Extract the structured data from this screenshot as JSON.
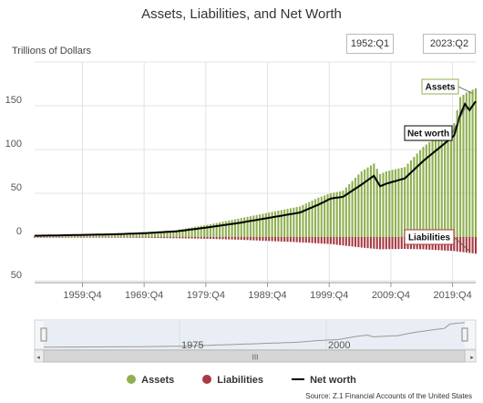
{
  "header": {
    "title": "Assets, Liabilities, and Net Worth",
    "unit_label": "Trillions of Dollars",
    "range_start": "1952:Q1",
    "range_end": "2023:Q2"
  },
  "navigator": {
    "labels": [
      "1975",
      "2000"
    ],
    "scrollbar_grip": "III"
  },
  "legend": {
    "assets": "Assets",
    "liabilities": "Liabilities",
    "net_worth": "Net worth"
  },
  "callouts": {
    "assets": "Assets",
    "net_worth": "Net worth",
    "liabilities": "Liabilities"
  },
  "source": "Source: Z.1 Financial Accounts of the United States",
  "colors": {
    "assets": "#8fb051",
    "liabilities": "#a83a43",
    "net_worth": "#000000",
    "grid": "#e3e3e3",
    "navigator_fill": "#e8eef4",
    "navigator_line": "#999999"
  },
  "chart_data": {
    "type": "bar",
    "title": "Assets, Liabilities, and Net Worth",
    "ylabel": "Trillions of Dollars",
    "ylim": [
      -50,
      175
    ],
    "yticks": [
      -50,
      0,
      50,
      100,
      150
    ],
    "ytick_labels": [
      "50",
      "0",
      "50",
      "100",
      "150"
    ],
    "xlim": [
      1952.0,
      2023.5
    ],
    "xticks": [
      1959.75,
      1969.75,
      1979.75,
      1989.75,
      1999.75,
      2009.75,
      2019.75
    ],
    "xtick_labels": [
      "1959:Q4",
      "1969:Q4",
      "1979:Q4",
      "1989:Q4",
      "1999:Q4",
      "2009:Q4",
      "2019:Q4"
    ],
    "grid": true,
    "legend_position": "bottom-center",
    "series": [
      {
        "name": "Assets",
        "mark": "bar",
        "x": [
          1952,
          1955,
          1960,
          1965,
          1970,
          1975,
          1980,
          1985,
          1990,
          1995,
          1998,
          2000,
          2002,
          2005,
          2007,
          2008,
          2009,
          2012,
          2015,
          2019,
          2020,
          2021,
          2022,
          2023.5
        ],
        "y": [
          1.8,
          2.2,
          3,
          4,
          5.5,
          8,
          14,
          21,
          28,
          35,
          45,
          50,
          53,
          75,
          84,
          72,
          75,
          80,
          103,
          125,
          130,
          160,
          165,
          170
        ]
      },
      {
        "name": "Liabilities",
        "mark": "bar",
        "x": [
          1952,
          1960,
          1970,
          1980,
          1985,
          1990,
          1995,
          2000,
          2005,
          2008,
          2012,
          2015,
          2020,
          2023.5
        ],
        "y": [
          -0.3,
          -0.5,
          -0.8,
          -2,
          -3,
          -4.5,
          -6,
          -8,
          -12,
          -14,
          -13.5,
          -14,
          -16,
          -19
        ]
      },
      {
        "name": "Net worth",
        "mark": "line",
        "x": [
          1952,
          1955,
          1960,
          1965,
          1970,
          1975,
          1980,
          1985,
          1990,
          1995,
          1998,
          2000,
          2002,
          2005,
          2007,
          2008,
          2009,
          2012,
          2015,
          2019,
          2020,
          2021,
          2021.75,
          2022.5,
          2023.5
        ],
        "y": [
          1.5,
          1.8,
          2.5,
          3.2,
          4.5,
          6.5,
          11,
          16,
          22,
          28,
          37,
          44,
          46,
          60,
          70,
          58,
          61,
          67,
          87,
          110,
          116,
          140,
          152,
          145,
          155
        ]
      }
    ],
    "annotations": [
      "Assets",
      "Net worth",
      "Liabilities"
    ]
  }
}
